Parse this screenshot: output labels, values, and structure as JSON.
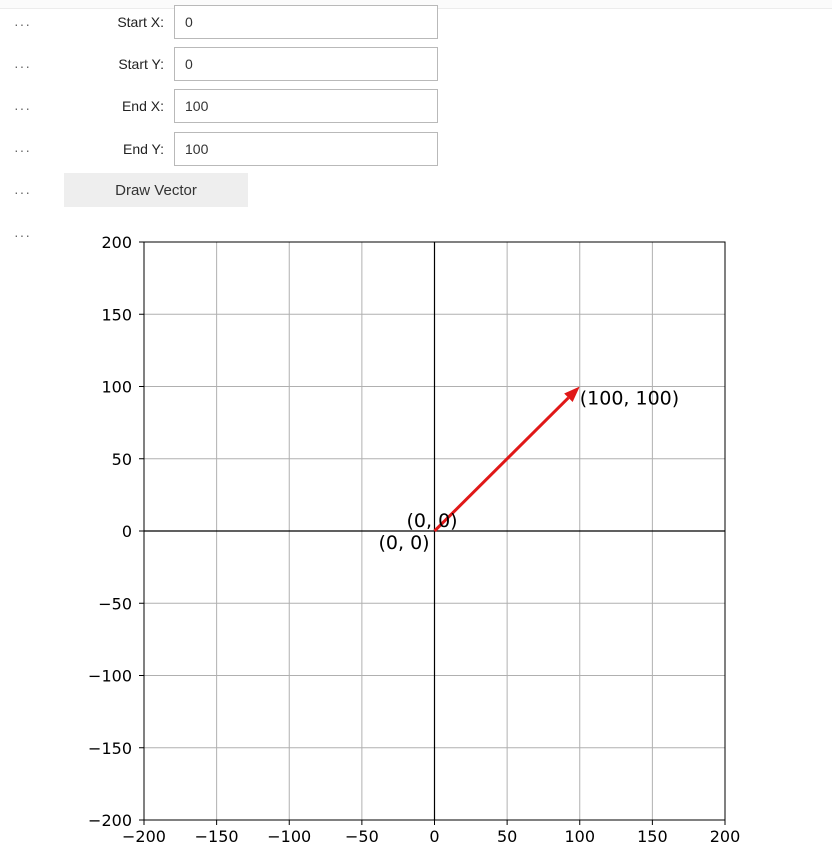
{
  "form": {
    "start_x": {
      "label": "Start X:",
      "value": "0"
    },
    "start_y": {
      "label": "Start Y:",
      "value": "0"
    },
    "end_x": {
      "label": "End X:",
      "value": "100"
    },
    "end_y": {
      "label": "End Y:",
      "value": "100"
    },
    "draw_button_label": "Draw Vector"
  },
  "cell_prompt": "···",
  "chart_data": {
    "type": "line",
    "title": "",
    "xlabel": "",
    "ylabel": "",
    "xlim": [
      -200,
      200
    ],
    "ylim": [
      -200,
      200
    ],
    "xticks": [
      -200,
      -150,
      -100,
      -50,
      0,
      50,
      100,
      150,
      200
    ],
    "yticks": [
      -200,
      -150,
      -100,
      -50,
      0,
      50,
      100,
      150,
      200
    ],
    "x_tick_labels": [
      "−200",
      "−150",
      "−100",
      "−50",
      "0",
      "50",
      "100",
      "150",
      "200"
    ],
    "y_tick_labels": [
      "−200",
      "−150",
      "−100",
      "−50",
      "0",
      "50",
      "100",
      "150",
      "200"
    ],
    "grid": true,
    "axis_lines_through_origin": true,
    "vector": {
      "start": [
        0,
        0
      ],
      "end": [
        100,
        100
      ],
      "color": "#e01818"
    },
    "annotations": [
      {
        "text": "(0, 0)",
        "x": 0,
        "y": 0
      },
      {
        "text": "(0, 0)",
        "x": 0,
        "y": 0
      },
      {
        "text": "(100, 100)",
        "x": 100,
        "y": 100
      }
    ]
  }
}
